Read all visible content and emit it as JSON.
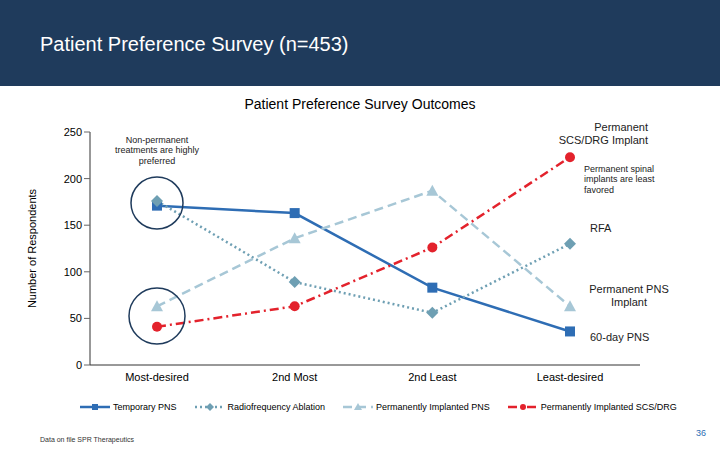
{
  "slide": {
    "heading": "Patient Preference Survey (n=453)",
    "footnote": "Data on file SPR Therapeutics",
    "page": 36
  },
  "chart_data": {
    "type": "line",
    "title": "Patient Preference Survey Outcomes",
    "ylabel": "Number of Respondents",
    "categories": [
      "Most-desired",
      "2nd Most",
      "2nd Least",
      "Least-desired"
    ],
    "series": [
      {
        "name": "Temporary PNS",
        "color": "#2e6db4",
        "values": [
          171,
          163,
          83,
          36
        ],
        "marker": "square",
        "line_style": "solid"
      },
      {
        "name": "Radiofrequency Ablation",
        "color": "#6e9fb3",
        "values": [
          176,
          89,
          56,
          130
        ],
        "marker": "diamond",
        "line_style": "dotted"
      },
      {
        "name": "Permanently Implanted PNS",
        "color": "#a7c7d6",
        "values": [
          63,
          136,
          187,
          63
        ],
        "marker": "triangle",
        "line_style": "dashed"
      },
      {
        "name": "Permanently Implanted SCS/DRG",
        "color": "#e3222c",
        "values": [
          41,
          63,
          126,
          223
        ],
        "marker": "circle",
        "line_style": "dashdot"
      }
    ],
    "ylim": [
      0,
      250
    ],
    "yticks": [
      0,
      50,
      100,
      150,
      200,
      250
    ],
    "grid": false,
    "legend": "bottom",
    "annotations": [
      "Non-permanent treatments are highly preferred",
      "Permanent SCS/DRG Implant",
      "Permanent spinal implants are least favored",
      "RFA",
      "Permanent PNS Implant",
      "60-day PNS"
    ]
  }
}
